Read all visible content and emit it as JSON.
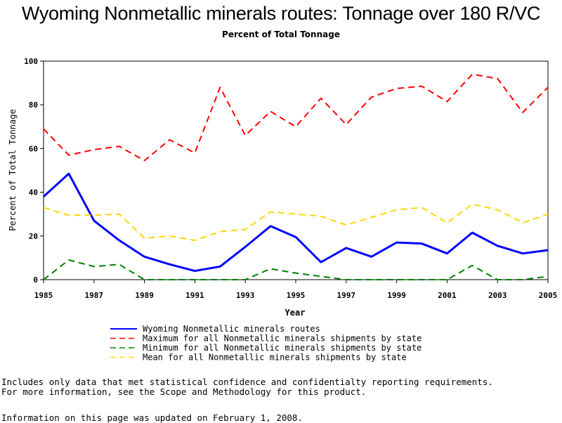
{
  "chart_data": {
    "type": "line",
    "title": "Wyoming Nonmetallic minerals routes: Tonnage over 180 R/VC",
    "subtitle": "Percent of Total Tonnage",
    "xlabel": "Year",
    "ylabel": "Percent of Total Tonnage",
    "xlim": [
      1985,
      2005
    ],
    "ylim": [
      0,
      100
    ],
    "xticks": [
      "1985",
      "1987",
      "1989",
      "1991",
      "1993",
      "1995",
      "1997",
      "1999",
      "2001",
      "2003",
      "2005"
    ],
    "yticks": [
      "0",
      "20",
      "40",
      "60",
      "80",
      "100"
    ],
    "x": [
      1985,
      1986,
      1987,
      1988,
      1989,
      1990,
      1991,
      1992,
      1993,
      1994,
      1995,
      1996,
      1997,
      1998,
      1999,
      2000,
      2001,
      2002,
      2003,
      2004,
      2005
    ],
    "series": [
      {
        "name": "Wyoming Nonmetallic minerals routes",
        "color": "#0000ff",
        "style": "solid",
        "values": [
          38,
          48.5,
          27,
          18,
          10.5,
          7,
          4,
          6,
          15,
          24.5,
          19.5,
          8,
          14.5,
          10.5,
          17,
          16.5,
          12,
          21.5,
          15.5,
          12,
          13.5
        ]
      },
      {
        "name": "Maximum for all Nonmetallic minerals shipments by state",
        "color": "#ff0000",
        "style": "dashed",
        "values": [
          69,
          57,
          59.5,
          61,
          54.5,
          64,
          58,
          88,
          66,
          77,
          70,
          83,
          71,
          83.5,
          87.5,
          88.5,
          81.5,
          94,
          92,
          76.5,
          88
        ]
      },
      {
        "name": "Minimum for all Nonmetallic minerals shipments by state",
        "color": "#008000",
        "style": "dashed",
        "values": [
          0,
          9,
          6,
          7,
          0,
          0,
          0,
          0,
          0,
          5,
          3,
          1.5,
          0,
          0,
          0,
          0,
          0,
          6.5,
          0,
          0,
          1.5
        ]
      },
      {
        "name": "Mean for all Nonmetallic minerals shipments by state",
        "color": "#ffd700",
        "style": "dashed",
        "values": [
          33,
          29.5,
          29.5,
          30,
          19,
          20,
          18,
          22,
          23,
          31,
          30,
          29,
          25,
          28.5,
          32,
          33,
          26,
          34.5,
          32,
          26,
          30
        ]
      }
    ]
  },
  "notes": {
    "line1": "Includes only data that met statistical confidence and confidentialty reporting requirements.",
    "line2": "For more information, see the Scope and Methodology for this product.",
    "line3": "Information on this page was updated on February 1, 2008."
  }
}
